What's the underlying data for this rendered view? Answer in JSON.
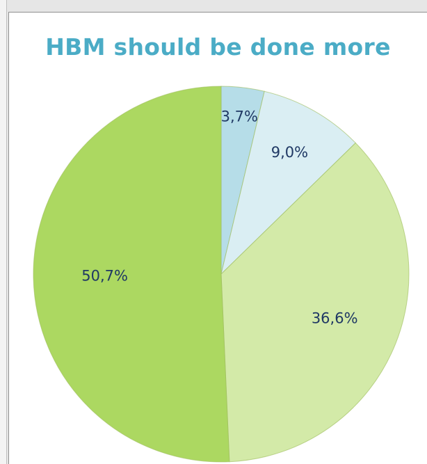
{
  "chart_data": {
    "type": "pie",
    "title": "HBM should be done more",
    "slices": [
      {
        "label": "3,7%",
        "value": 3.7,
        "color": "#b6dde8"
      },
      {
        "label": "9,0%",
        "value": 9.0,
        "color": "#daeef3"
      },
      {
        "label": "36,6%",
        "value": 36.6,
        "color": "#d3eaa8"
      },
      {
        "label": "50,7%",
        "value": 50.7,
        "color": "#acd861"
      }
    ],
    "start_angle": "12 o'clock",
    "direction": "clockwise"
  }
}
